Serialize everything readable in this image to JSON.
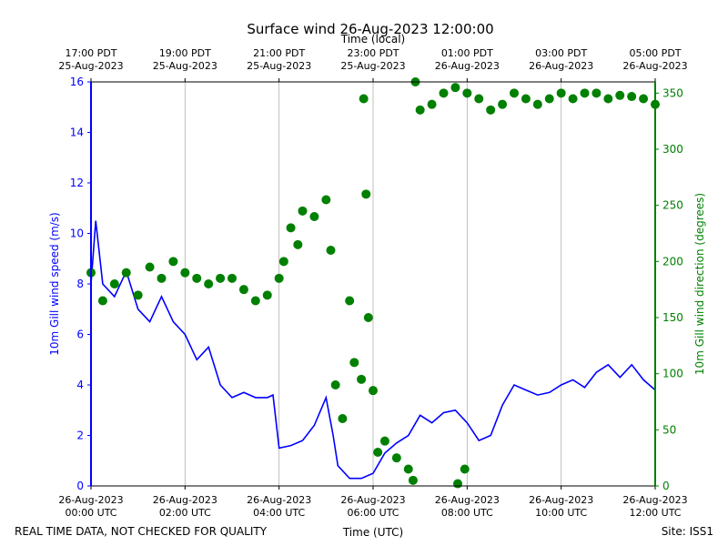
{
  "chart_data": {
    "type": "line",
    "title": "Surface wind 26-Aug-2023 12:00:00",
    "xlabel": "Time (UTC)",
    "x2label": "Time (local)",
    "ylabel": "10m Gill wind speed (m/s)",
    "y2label": "10m Gill wind direction (degrees)",
    "footer_left": "REAL TIME DATA, NOT CHECKED FOR QUALITY",
    "footer_right": "Site: ISS1",
    "xlim": [
      0,
      12
    ],
    "xticks": [
      {
        "value": 0,
        "label": "26-Aug-2023\n00:00 UTC"
      },
      {
        "value": 2,
        "label": "26-Aug-2023\n02:00 UTC"
      },
      {
        "value": 4,
        "label": "26-Aug-2023\n04:00 UTC"
      },
      {
        "value": 6,
        "label": "26-Aug-2023\n06:00 UTC"
      },
      {
        "value": 8,
        "label": "26-Aug-2023\n08:00 UTC"
      },
      {
        "value": 10,
        "label": "26-Aug-2023\n10:00 UTC"
      },
      {
        "value": 12,
        "label": "26-Aug-2023\n12:00 UTC"
      }
    ],
    "x2ticks": [
      {
        "value": 0,
        "label": "17:00 PDT\n25-Aug-2023"
      },
      {
        "value": 2,
        "label": "19:00 PDT\n25-Aug-2023"
      },
      {
        "value": 4,
        "label": "21:00 PDT\n25-Aug-2023"
      },
      {
        "value": 6,
        "label": "23:00 PDT\n25-Aug-2023"
      },
      {
        "value": 8,
        "label": "01:00 PDT\n26-Aug-2023"
      },
      {
        "value": 10,
        "label": "03:00 PDT\n26-Aug-2023"
      },
      {
        "value": 12,
        "label": "05:00 PDT\n26-Aug-2023"
      }
    ],
    "ylim": [
      0,
      16
    ],
    "yticks": [
      0,
      2,
      4,
      6,
      8,
      10,
      12,
      14,
      16
    ],
    "y2lim": [
      0,
      360
    ],
    "y2ticks": [
      0,
      50,
      100,
      150,
      200,
      250,
      300,
      350
    ],
    "grid": "x",
    "series": [
      {
        "type": "line",
        "color": "#0000ff",
        "axis": "y",
        "x": [
          0,
          0.1,
          0.25,
          0.5,
          0.75,
          1,
          1.25,
          1.5,
          1.75,
          2,
          2.25,
          2.5,
          2.75,
          3,
          3.25,
          3.5,
          3.75,
          3.87,
          4,
          4.25,
          4.5,
          4.75,
          5,
          5.15,
          5.25,
          5.5,
          5.75,
          6,
          6.25,
          6.5,
          6.75,
          7,
          7.25,
          7.5,
          7.75,
          8,
          8.25,
          8.5,
          8.75,
          9,
          9.25,
          9.5,
          9.75,
          10,
          10.25,
          10.5,
          10.75,
          11,
          11.25,
          11.5,
          11.75,
          12
        ],
        "values": [
          8,
          10.5,
          8,
          7.5,
          8.5,
          7,
          6.5,
          7.5,
          6.5,
          6,
          5,
          5.5,
          4,
          3.5,
          3.7,
          3.5,
          3.5,
          3.6,
          1.5,
          1.6,
          1.8,
          2.4,
          3.5,
          2,
          0.8,
          0.3,
          0.3,
          0.5,
          1.3,
          1.7,
          2,
          2.8,
          2.5,
          2.9,
          3,
          2.5,
          1.8,
          2,
          3.2,
          4,
          3.8,
          3.6,
          3.7,
          4,
          4.2,
          3.9,
          4.5,
          4.8,
          4.3,
          4.8,
          4.2,
          3.8
        ]
      },
      {
        "type": "scatter",
        "color": "#008000",
        "axis": "y2",
        "x": [
          0,
          0.25,
          0.5,
          0.75,
          1,
          1.25,
          1.5,
          1.75,
          2,
          2.25,
          2.5,
          2.75,
          3,
          3.25,
          3.5,
          3.75,
          4,
          4.1,
          4.25,
          4.4,
          4.5,
          4.75,
          5,
          5.1,
          5.2,
          5.35,
          5.5,
          5.6,
          5.75,
          5.8,
          5.85,
          5.9,
          6,
          6.1,
          6.25,
          6.5,
          6.75,
          6.85,
          6.9,
          7,
          7.25,
          7.5,
          7.75,
          7.8,
          7.95,
          8,
          8.25,
          8.5,
          8.75,
          9,
          9.25,
          9.5,
          9.75,
          10,
          10.25,
          10.5,
          10.75,
          11,
          11.25,
          11.5,
          11.75,
          12
        ],
        "values": [
          190,
          165,
          180,
          190,
          170,
          195,
          185,
          200,
          190,
          185,
          180,
          185,
          185,
          175,
          165,
          170,
          185,
          200,
          230,
          215,
          245,
          240,
          255,
          210,
          90,
          60,
          165,
          110,
          95,
          345,
          260,
          150,
          85,
          30,
          40,
          25,
          15,
          5,
          360,
          335,
          340,
          350,
          355,
          2,
          15,
          350,
          345,
          335,
          340,
          350,
          345,
          340,
          345,
          350,
          345,
          350,
          350,
          345,
          348,
          347,
          345,
          340
        ]
      }
    ]
  }
}
